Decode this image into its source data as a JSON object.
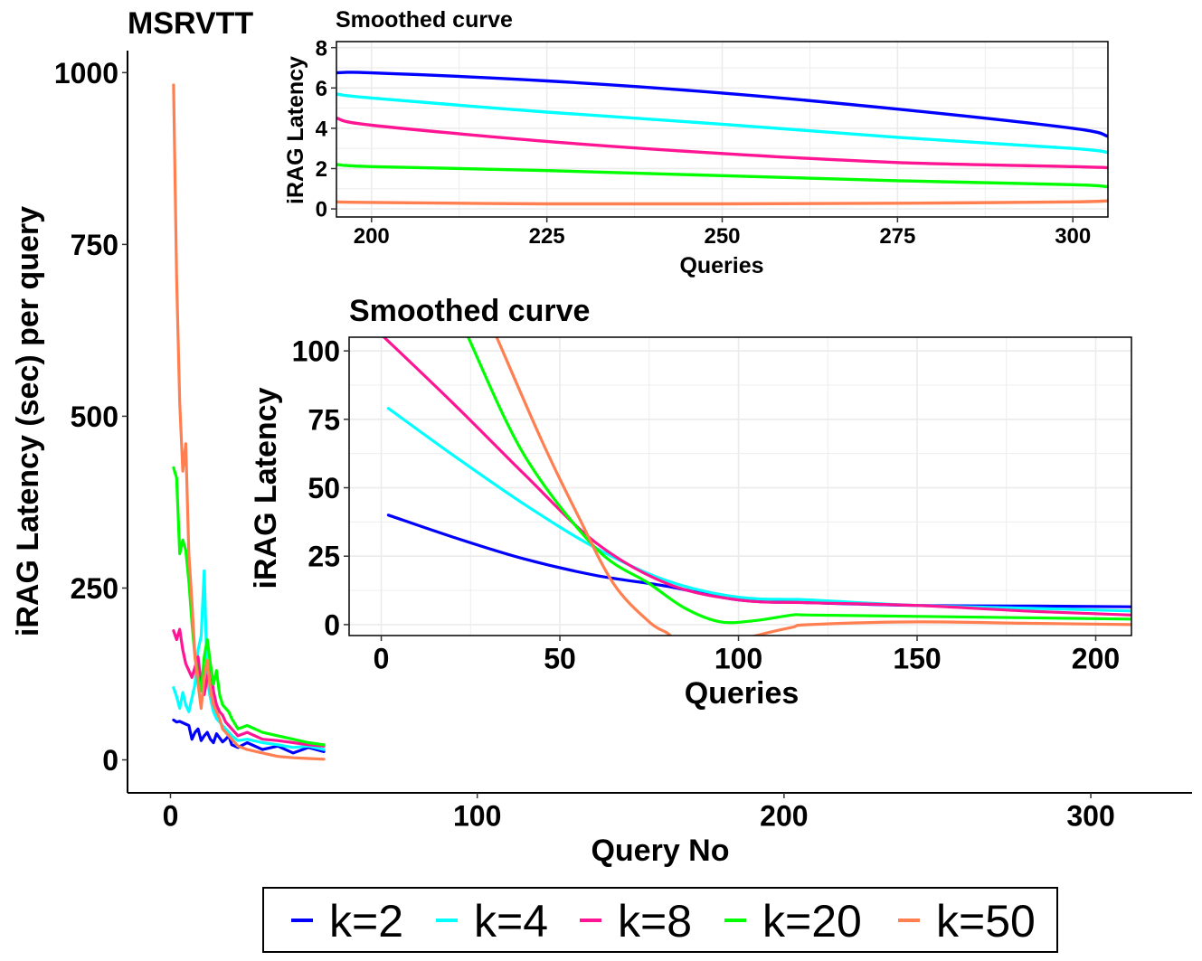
{
  "chart_data": [
    {
      "type": "line",
      "title": "MSRVTT",
      "xlabel": "Query No",
      "ylabel": "iRAG Latency (sec) per query",
      "xlim": [
        -14,
        333
      ],
      "ylim": [
        -48,
        1032
      ],
      "xticks": [
        0,
        100,
        200,
        300
      ],
      "yticks": [
        0,
        250,
        500,
        750,
        1000
      ],
      "grid": false,
      "legend_position": "bottom",
      "series": [
        {
          "name": "k=2",
          "color": "#0000ff",
          "x": [
            1,
            2,
            3,
            4,
            5,
            6,
            7,
            8,
            9,
            10,
            11,
            12,
            13,
            14,
            15,
            16,
            17,
            18,
            19,
            20,
            22,
            25,
            30,
            35,
            40,
            45,
            50
          ],
          "y": [
            58,
            55,
            56,
            54,
            52,
            50,
            30,
            40,
            45,
            28,
            35,
            40,
            30,
            25,
            38,
            32,
            26,
            30,
            35,
            22,
            18,
            25,
            15,
            20,
            10,
            18,
            12
          ]
        },
        {
          "name": "k=4",
          "color": "#00ffff",
          "x": [
            1,
            2,
            3,
            4,
            5,
            6,
            7,
            8,
            9,
            10,
            11,
            12,
            13,
            14,
            15,
            16,
            17,
            18,
            19,
            20,
            22,
            25,
            30,
            35,
            40,
            45,
            50
          ],
          "y": [
            105,
            92,
            75,
            98,
            80,
            70,
            90,
            110,
            160,
            180,
            275,
            115,
            90,
            70,
            60,
            55,
            50,
            45,
            40,
            35,
            28,
            30,
            25,
            22,
            18,
            20,
            15
          ]
        },
        {
          "name": "k=8",
          "color": "#ff1493",
          "x": [
            1,
            2,
            3,
            4,
            5,
            6,
            7,
            8,
            9,
            10,
            11,
            12,
            13,
            14,
            15,
            16,
            17,
            18,
            19,
            20,
            22,
            25,
            30,
            35,
            40,
            45,
            50
          ],
          "y": [
            188,
            175,
            190,
            160,
            140,
            130,
            120,
            135,
            150,
            110,
            95,
            120,
            140,
            100,
            80,
            70,
            65,
            55,
            50,
            45,
            35,
            40,
            30,
            28,
            25,
            22,
            20
          ]
        },
        {
          "name": "k=20",
          "color": "#00ff00",
          "x": [
            1,
            2,
            3,
            4,
            5,
            6,
            7,
            8,
            9,
            10,
            11,
            12,
            13,
            14,
            15,
            16,
            17,
            18,
            19,
            20,
            22,
            25,
            30,
            35,
            40,
            45,
            50
          ],
          "y": [
            425,
            410,
            300,
            320,
            305,
            260,
            200,
            150,
            120,
            100,
            150,
            175,
            140,
            110,
            130,
            95,
            80,
            75,
            70,
            60,
            45,
            50,
            40,
            35,
            30,
            25,
            22
          ]
        },
        {
          "name": "k=50",
          "color": "#ff7f50",
          "x": [
            1,
            2,
            3,
            4,
            5,
            6,
            7,
            8,
            9,
            10,
            11,
            12,
            13,
            14,
            15,
            16,
            17,
            18,
            19,
            20,
            22,
            25,
            30,
            35,
            40,
            45,
            50
          ],
          "y": [
            982,
            700,
            520,
            420,
            460,
            300,
            230,
            150,
            110,
            75,
            120,
            145,
            100,
            80,
            70,
            60,
            45,
            40,
            35,
            30,
            20,
            15,
            10,
            5,
            3,
            2,
            1
          ]
        }
      ]
    },
    {
      "type": "line",
      "title": "Smoothed curve",
      "xlabel": "Queries",
      "ylabel": "iRAG Latency",
      "xlim": [
        195,
        305
      ],
      "ylim": [
        -0.4,
        8.3
      ],
      "xticks": [
        200,
        225,
        250,
        275,
        300
      ],
      "yticks": [
        0,
        2,
        4,
        6,
        8
      ],
      "grid": true,
      "series": [
        {
          "name": "k=2",
          "color": "#0000ff",
          "x": [
            195,
            200,
            225,
            250,
            275,
            300,
            305
          ],
          "y": [
            6.75,
            6.75,
            6.35,
            5.75,
            4.95,
            4.0,
            3.6
          ]
        },
        {
          "name": "k=4",
          "color": "#00ffff",
          "x": [
            195,
            200,
            225,
            250,
            275,
            300,
            305
          ],
          "y": [
            5.7,
            5.5,
            4.8,
            4.2,
            3.55,
            3.0,
            2.8
          ]
        },
        {
          "name": "k=8",
          "color": "#ff1493",
          "x": [
            195,
            200,
            225,
            250,
            275,
            300,
            305
          ],
          "y": [
            4.5,
            4.15,
            3.35,
            2.75,
            2.3,
            2.1,
            2.05
          ]
        },
        {
          "name": "k=20",
          "color": "#00ff00",
          "x": [
            195,
            200,
            225,
            250,
            275,
            300,
            305
          ],
          "y": [
            2.2,
            2.1,
            1.9,
            1.65,
            1.4,
            1.2,
            1.1
          ]
        },
        {
          "name": "k=50",
          "color": "#ff7f50",
          "x": [
            195,
            200,
            225,
            250,
            275,
            300,
            305
          ],
          "y": [
            0.35,
            0.32,
            0.25,
            0.25,
            0.28,
            0.35,
            0.4
          ]
        }
      ]
    },
    {
      "type": "line",
      "title": "Smoothed curve",
      "xlabel": "Queries",
      "ylabel": "iRAG Latency",
      "xlim": [
        -9,
        210
      ],
      "ylim": [
        -4,
        105
      ],
      "xticks": [
        0,
        50,
        100,
        150,
        200
      ],
      "yticks": [
        0,
        25,
        50,
        75,
        100
      ],
      "grid": true,
      "series": [
        {
          "name": "k=2",
          "color": "#0000ff",
          "x": [
            2,
            20,
            40,
            60,
            80,
            100,
            120,
            150,
            180,
            210
          ],
          "y": [
            40,
            32,
            24,
            18,
            14,
            9,
            8,
            7,
            6.8,
            6.5
          ]
        },
        {
          "name": "k=4",
          "color": "#00ffff",
          "x": [
            2,
            20,
            40,
            60,
            80,
            100,
            120,
            150,
            180,
            210
          ],
          "y": [
            79,
            62,
            44,
            28,
            16,
            10,
            9,
            7,
            6,
            5
          ]
        },
        {
          "name": "k=8",
          "color": "#ff1493",
          "x": [
            0,
            20,
            40,
            60,
            80,
            100,
            120,
            150,
            180,
            210
          ],
          "y": [
            106,
            81,
            55,
            30,
            15,
            9,
            8,
            7,
            5,
            3.5
          ]
        },
        {
          "name": "k=20",
          "color": "#00ff00",
          "x": [
            24,
            40,
            60,
            75,
            85,
            95,
            105,
            115,
            120,
            150,
            180,
            210
          ],
          "y": [
            106,
            62,
            28,
            15,
            6,
            1,
            1.5,
            3.5,
            3.5,
            3,
            2.5,
            2
          ]
        },
        {
          "name": "k=50",
          "color": "#ff7f50",
          "x": [
            32,
            45,
            55,
            65,
            75,
            80,
            82,
            88,
            95,
            105,
            115,
            120,
            150,
            180,
            210
          ],
          "y": [
            106,
            67,
            40,
            15,
            1,
            -3,
            -5,
            -8,
            -8,
            -4,
            -1,
            0,
            1,
            0.5,
            0
          ]
        }
      ]
    }
  ]
}
